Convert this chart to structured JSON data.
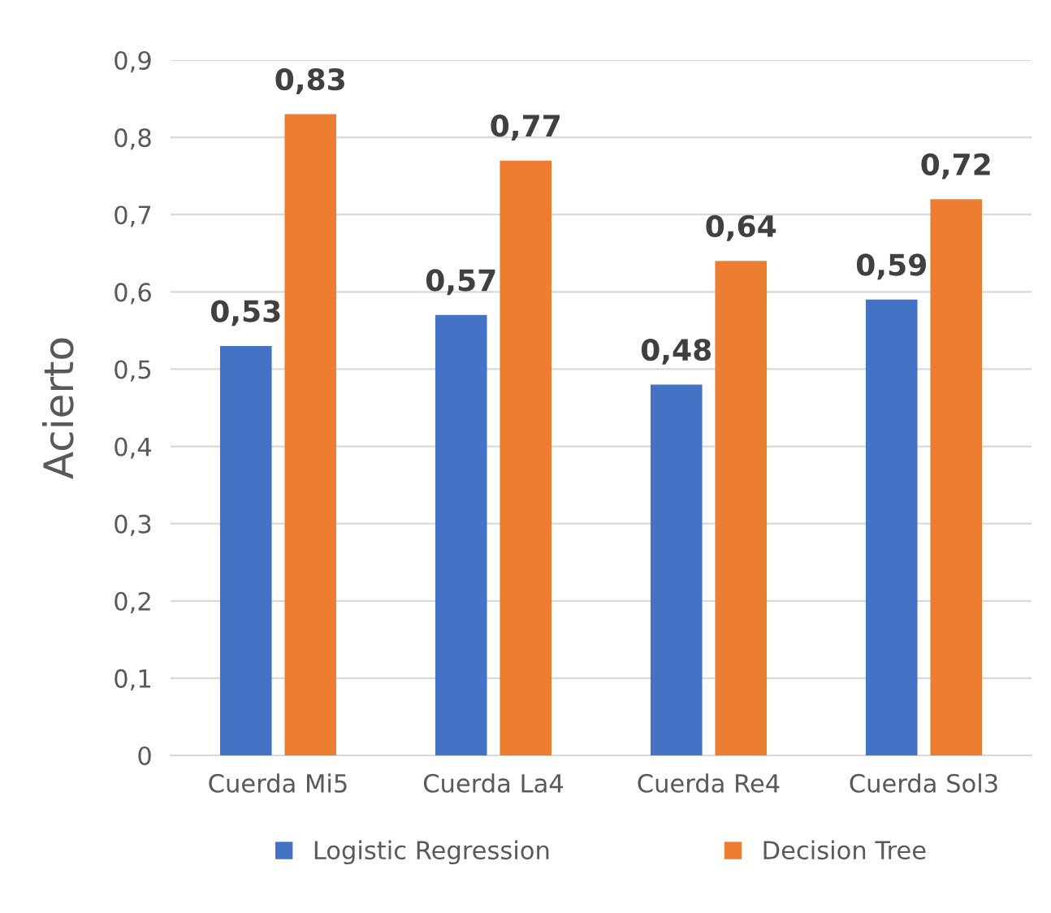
{
  "chart_data": {
    "type": "bar",
    "ylabel": "Acierto",
    "categories": [
      "Cuerda Mi5",
      "Cuerda La4",
      "Cuerda Re4",
      "Cuerda Sol3"
    ],
    "series": [
      {
        "name": "Logistic Regression",
        "color": "#4472c4",
        "values": [
          0.53,
          0.57,
          0.48,
          0.59
        ],
        "value_labels": [
          "0,53",
          "0,57",
          "0,48",
          "0,59"
        ]
      },
      {
        "name": "Decision Tree",
        "color": "#ed7d31",
        "values": [
          0.83,
          0.77,
          0.64,
          0.72
        ],
        "value_labels": [
          "0,83",
          "0,77",
          "0,64",
          "0,72"
        ]
      }
    ],
    "ylim": [
      0,
      0.9
    ],
    "yticks": [
      0,
      {
        "value": 0.1,
        "label": "0,1"
      },
      {
        "value": 0.2,
        "label": "0,2"
      },
      {
        "value": 0.3,
        "label": "0,3"
      },
      {
        "value": 0.4,
        "label": "0,4"
      },
      {
        "value": 0.5,
        "label": "0,5"
      },
      {
        "value": 0.6,
        "label": "0,6"
      },
      {
        "value": 0.7,
        "label": "0,7"
      },
      {
        "value": 0.8,
        "label": "0,8"
      },
      {
        "value": 0.9,
        "label": "0,9"
      }
    ],
    "grid": "y",
    "legend": "bottom"
  }
}
